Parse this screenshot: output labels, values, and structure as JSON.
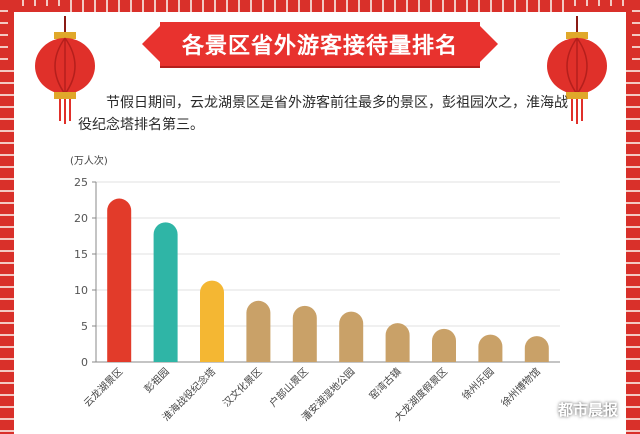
{
  "title": "各景区省外游客接待量排名",
  "intro": "节假日期间，云龙湖景区是省外游客前往最多的景区，彭祖园次之，淮海战役纪念塔排名第三。",
  "watermark": "都市晨报",
  "colors": {
    "frame": "#d9302a",
    "banner": "#e8322e",
    "bar_red": "#e23b2a",
    "bar_teal": "#2fb5a6",
    "bar_gold": "#f4b733",
    "bar_tan": "#c9a168"
  },
  "chart_data": {
    "type": "bar",
    "ylabel": "(万人次)",
    "ylim": [
      0,
      25
    ],
    "yticks": [
      0,
      5,
      10,
      15,
      20,
      25
    ],
    "categories": [
      "云龙湖景区",
      "彭祖园",
      "淮海战役纪念塔",
      "汉文化景区",
      "户部山景区",
      "潘安湖湿地公园",
      "窑湾古镇",
      "大龙湖度假景区",
      "徐州乐园",
      "徐州博物馆"
    ],
    "values": [
      22.7,
      19.4,
      11.3,
      8.5,
      7.8,
      7.0,
      5.4,
      4.6,
      3.8,
      3.6
    ],
    "bar_colors": [
      "#e23b2a",
      "#2fb5a6",
      "#f4b733",
      "#c9a168",
      "#c9a168",
      "#c9a168",
      "#c9a168",
      "#c9a168",
      "#c9a168",
      "#c9a168"
    ],
    "grid": true
  }
}
